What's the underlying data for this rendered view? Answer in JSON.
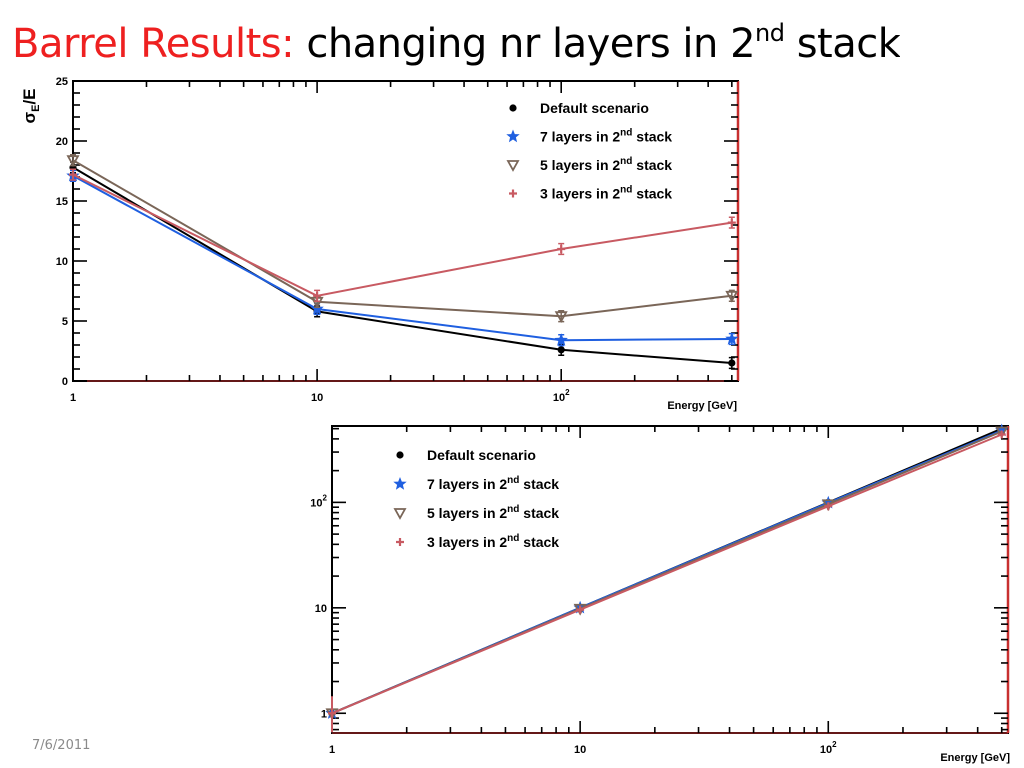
{
  "slide": {
    "title_main": "Barrel Results:",
    "title_rest": "changing nr layers in 2",
    "title_sup": "nd",
    "title_end": "stack",
    "date": "7/6/2011"
  },
  "colors": {
    "title_accent": "#ee2020",
    "default": "#000000",
    "seven_layers": "#1f5fe0",
    "five_layers": "#7a6658",
    "three_layers": "#c85a62",
    "right_frame": "#c83030"
  },
  "chart_data": [
    {
      "type": "line",
      "ylabel_main": "σ",
      "ylabel_sub": "E",
      "ylabel_rest": "/E",
      "xlabel": "Energy [GeV]",
      "xscale": "log",
      "yscale": "linear",
      "xlim": [
        1,
        530
      ],
      "ylim": [
        0,
        25
      ],
      "xticks": [
        1,
        10,
        100
      ],
      "xtick_labels": [
        "1",
        "10",
        "10^2"
      ],
      "yticks": [
        0,
        5,
        10,
        15,
        20,
        25
      ],
      "ytick_labels": [
        "0",
        "5",
        "10",
        "15",
        "20",
        "25"
      ],
      "legend_position": "top-right",
      "x": [
        1,
        10,
        100,
        500
      ],
      "series": [
        {
          "name": "Default scenario",
          "marker": "circle",
          "color": "#000000",
          "values": [
            17.8,
            5.8,
            2.6,
            1.5
          ]
        },
        {
          "name": "7 layers in 2^nd stack",
          "marker": "star",
          "color": "#1f5fe0",
          "values": [
            17.1,
            6.0,
            3.4,
            3.5
          ]
        },
        {
          "name": "5 layers in 2^nd stack",
          "marker": "triangle-down",
          "color": "#7a6658",
          "values": [
            18.4,
            6.6,
            5.4,
            7.1
          ]
        },
        {
          "name": "3 layers in 2^nd stack",
          "marker": "plus",
          "color": "#c85a62",
          "values": [
            17.2,
            7.1,
            11.0,
            13.2
          ]
        }
      ]
    },
    {
      "type": "line",
      "xlabel": "Energy [GeV]",
      "xscale": "log",
      "yscale": "log",
      "xlim": [
        1,
        530
      ],
      "ylim": [
        0.65,
        530
      ],
      "xticks": [
        1,
        10,
        100
      ],
      "xtick_labels": [
        "1",
        "10",
        "10^2"
      ],
      "yticks": [
        1,
        10,
        100
      ],
      "ytick_labels": [
        "1",
        "10",
        "10^2"
      ],
      "legend_position": "top-left",
      "x": [
        1,
        10,
        100,
        500
      ],
      "series": [
        {
          "name": "Default scenario",
          "marker": "circle",
          "color": "#000000",
          "values": [
            1,
            10,
            100,
            500
          ]
        },
        {
          "name": "7 layers in 2^nd stack",
          "marker": "star",
          "color": "#1f5fe0",
          "values": [
            1,
            10,
            99,
            480
          ]
        },
        {
          "name": "5 layers in 2^nd stack",
          "marker": "triangle-down",
          "color": "#7a6658",
          "values": [
            1,
            9.8,
            96,
            470
          ]
        },
        {
          "name": "3 layers in 2^nd stack",
          "marker": "plus",
          "color": "#c85a62",
          "values": [
            1,
            9.6,
            92,
            440
          ]
        }
      ]
    }
  ]
}
